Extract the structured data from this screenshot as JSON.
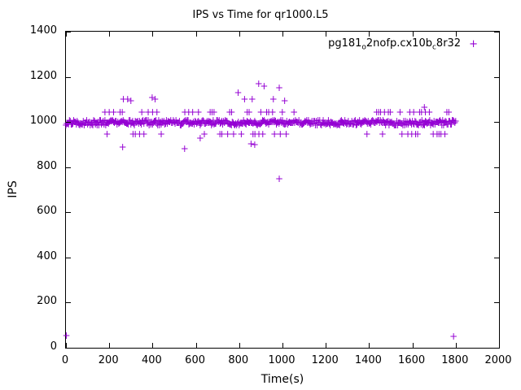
{
  "page": {
    "title": "IPS vs Time for qr1000.L5"
  },
  "chart_data": {
    "type": "scatter",
    "title": "IPS vs Time for qr1000.L5",
    "xlabel": "Time(s)",
    "ylabel": "IPS",
    "xlim": [
      0,
      2000
    ],
    "ylim": [
      0,
      1400
    ],
    "xticks": [
      0,
      200,
      400,
      600,
      800,
      1000,
      1200,
      1400,
      1600,
      1800,
      2000
    ],
    "yticks": [
      0,
      200,
      400,
      600,
      800,
      1000,
      1200,
      1400
    ],
    "grid": false,
    "legend_position": "top-right",
    "background": "#ffffff",
    "axis_color": "#000000",
    "series": [
      {
        "name": "pg181_o2nofp.cx10b_c8r32",
        "legend_parts": [
          "pg181",
          "o",
          "2nofp.cx10b",
          "c",
          "8r32"
        ],
        "color": "#9400d3",
        "marker": "plus",
        "band": {
          "x_start": 0,
          "x_end": 1800,
          "step": 4,
          "y_center": 997,
          "y_jitter": 12
        },
        "clusters": [
          {
            "x_start": 180,
            "x_end": 460,
            "step": 10,
            "skip": 0.45,
            "y_values": [
              1042,
              948
            ]
          },
          {
            "x_start": 540,
            "x_end": 1060,
            "step": 9,
            "skip": 0.4,
            "y_values": [
              1045,
              945
            ]
          },
          {
            "x_start": 1390,
            "x_end": 1770,
            "step": 9,
            "skip": 0.4,
            "y_values": [
              1043,
              947
            ]
          }
        ],
        "outliers": [
          [
            2,
            55
          ],
          [
            262,
            890
          ],
          [
            265,
            1100
          ],
          [
            285,
            1100
          ],
          [
            300,
            1095
          ],
          [
            398,
            1110
          ],
          [
            412,
            1100
          ],
          [
            548,
            880
          ],
          [
            620,
            930
          ],
          [
            795,
            1130
          ],
          [
            825,
            1100
          ],
          [
            860,
            1100
          ],
          [
            855,
            905
          ],
          [
            872,
            900
          ],
          [
            890,
            1170
          ],
          [
            915,
            1160
          ],
          [
            958,
            1100
          ],
          [
            985,
            1150
          ],
          [
            985,
            750
          ],
          [
            1010,
            1095
          ],
          [
            1655,
            1065
          ],
          [
            1790,
            50
          ]
        ]
      }
    ]
  }
}
